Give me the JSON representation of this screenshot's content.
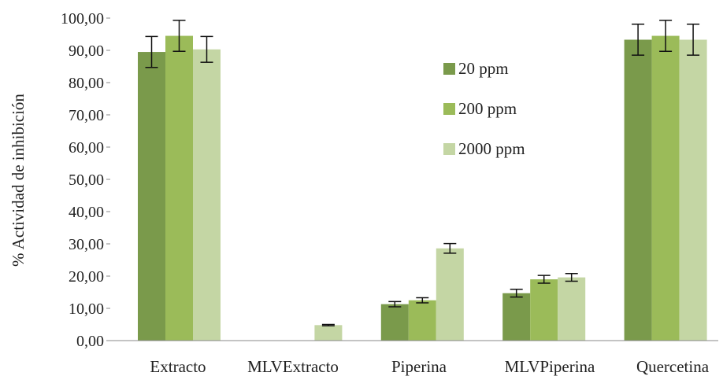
{
  "chart_data": {
    "type": "bar",
    "ylabel": "% Actividad de inhibición",
    "ylim": [
      0,
      100
    ],
    "ytick_step": 10,
    "ytick_labels": [
      "0,00",
      "10,00",
      "20,00",
      "30,00",
      "40,00",
      "50,00",
      "60,00",
      "70,00",
      "80,00",
      "90,00",
      "100,00"
    ],
    "categories": [
      "Extracto",
      "MLVExtracto",
      "Piperina",
      "MLVPiperina",
      "Quercetina"
    ],
    "legend_position": "top-right",
    "grid": false,
    "series": [
      {
        "name": "20 ppm",
        "color": "#7a9a4b",
        "values": [
          89.5,
          0,
          11.3,
          14.7,
          93.3
        ],
        "errors": [
          4.8,
          null,
          0.8,
          1.2,
          4.8
        ]
      },
      {
        "name": "200 ppm",
        "color": "#9bbb59",
        "values": [
          94.5,
          0,
          12.5,
          19.0,
          94.5
        ],
        "errors": [
          4.8,
          null,
          0.8,
          1.2,
          4.8
        ]
      },
      {
        "name": "2000 ppm",
        "color": "#c4d6a4",
        "values": [
          90.3,
          4.8,
          28.6,
          19.6,
          93.3
        ],
        "errors": [
          4.0,
          0.2,
          1.5,
          1.2,
          4.8
        ]
      }
    ]
  }
}
